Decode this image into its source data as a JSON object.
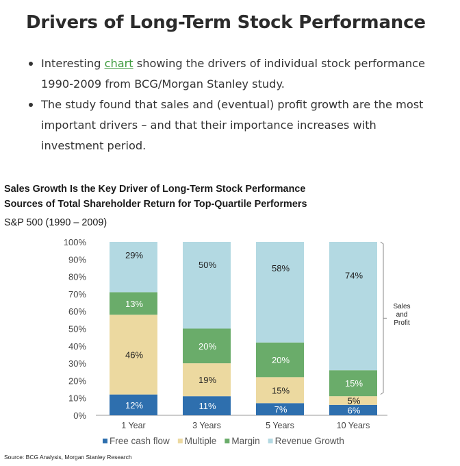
{
  "post": {
    "title": "Drivers of Long-Term Stock Performance",
    "bullet1_pre": "Interesting ",
    "bullet1_link": "chart",
    "bullet1_post": " showing the drivers of individual stock performance 1990-2009 from BCG/Morgan Stanley study.",
    "bullet2": "The study found that sales and (eventual) profit growth are the most important drivers – and that their importance increases with investment period."
  },
  "chart_data": {
    "type": "bar",
    "stacked": true,
    "title": "Sales Growth Is the Key Driver of Long-Term Stock Performance",
    "subtitle": "Sources of Total Shareholder Return for Top-Quartile Performers",
    "subtitle2": "S&P 500 (1990 – 2009)",
    "categories": [
      "1 Year",
      "3 Years",
      "5 Years",
      "10 Years"
    ],
    "series": [
      {
        "name": "Free cash flow",
        "color": "#2e6fae",
        "label_color": "#ffffff",
        "values": [
          12,
          11,
          7,
          6
        ]
      },
      {
        "name": "Multiple",
        "color": "#ecd9a0",
        "label_color": "#222222",
        "values": [
          46,
          19,
          15,
          5
        ]
      },
      {
        "name": "Margin",
        "color": "#6aac6a",
        "label_color": "#ffffff",
        "values": [
          13,
          20,
          20,
          15
        ]
      },
      {
        "name": "Revenue Growth",
        "color": "#b3d9e2",
        "label_color": "#222222",
        "values": [
          29,
          50,
          58,
          74
        ]
      }
    ],
    "ylim": [
      0,
      100
    ],
    "yticks": [
      "0%",
      "10%",
      "20%",
      "30%",
      "40%",
      "50%",
      "60%",
      "70%",
      "80%",
      "90%",
      "100%"
    ],
    "legend_position": "bottom",
    "annotation": [
      "Sales",
      "and",
      "Profit"
    ],
    "source": "Source: BCG Analysis, Morgan Stanley Research"
  }
}
